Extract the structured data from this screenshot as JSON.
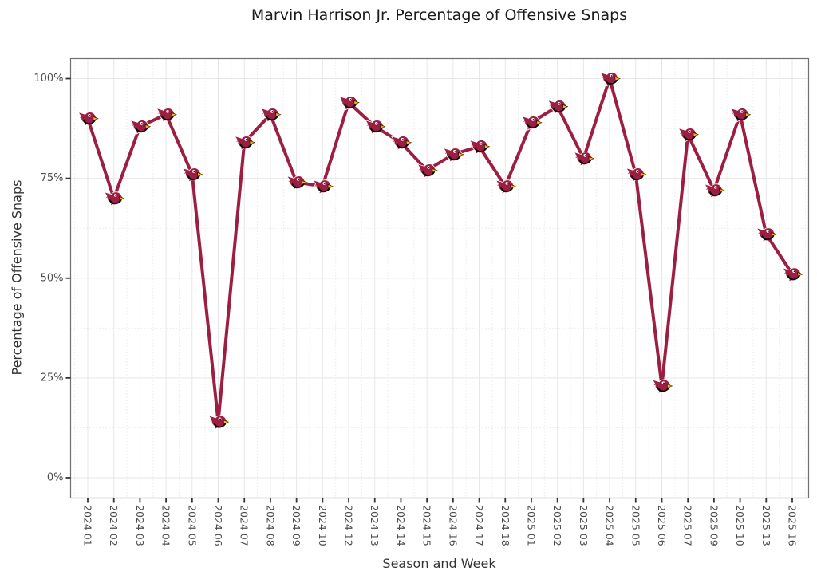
{
  "chart_data": {
    "type": "line",
    "title": "Marvin Harrison Jr. Percentage of Offensive Snaps",
    "xlabel": "Season and Week",
    "ylabel": "Percentage of Offensive Snaps",
    "legend": "none",
    "grid": "major+minor",
    "marker": "arizona-cardinals-logo",
    "categories": [
      "2024 01",
      "2024 02",
      "2024 03",
      "2024 04",
      "2024 05",
      "2024 06",
      "2024 07",
      "2024 08",
      "2024 09",
      "2024 10",
      "2024 12",
      "2024 13",
      "2024 14",
      "2024 15",
      "2024 16",
      "2024 17",
      "2024 18",
      "2025 01",
      "2025 02",
      "2025 03",
      "2025 04",
      "2025 05",
      "2025 06",
      "2025 07",
      "2025 09",
      "2025 10",
      "2025 13",
      "2025 16"
    ],
    "series": [
      {
        "name": "Marvin Harrison Jr. offensive snap percentage",
        "values": [
          90,
          70,
          88,
          91,
          76,
          14,
          84,
          91,
          74,
          73,
          94,
          88,
          84,
          77,
          81,
          83,
          73,
          89,
          93,
          80,
          100,
          76,
          23,
          86,
          72,
          91,
          61,
          51
        ]
      }
    ],
    "y_major_ticks": [
      0,
      25,
      50,
      75,
      100
    ],
    "y_tick_labels": [
      "0%",
      "25%",
      "50%",
      "75%",
      "100%"
    ],
    "y_minor_ticks": [
      12.5,
      37.5,
      62.5,
      87.5
    ],
    "ylim": [
      -5,
      105
    ],
    "colors": {
      "line": "#9C1F42",
      "logo_red": "#9C1F42",
      "logo_black": "#0d0d0d",
      "logo_beak": "#FFB612",
      "grid_major": "#e7e7e7",
      "grid_minor": "#e0e0e0",
      "panel_border": "#707070",
      "tick": "#333333",
      "tick_label": "#4d4d4d",
      "title_color": "#1a1a1a",
      "axis_title_color": "#333333"
    }
  }
}
